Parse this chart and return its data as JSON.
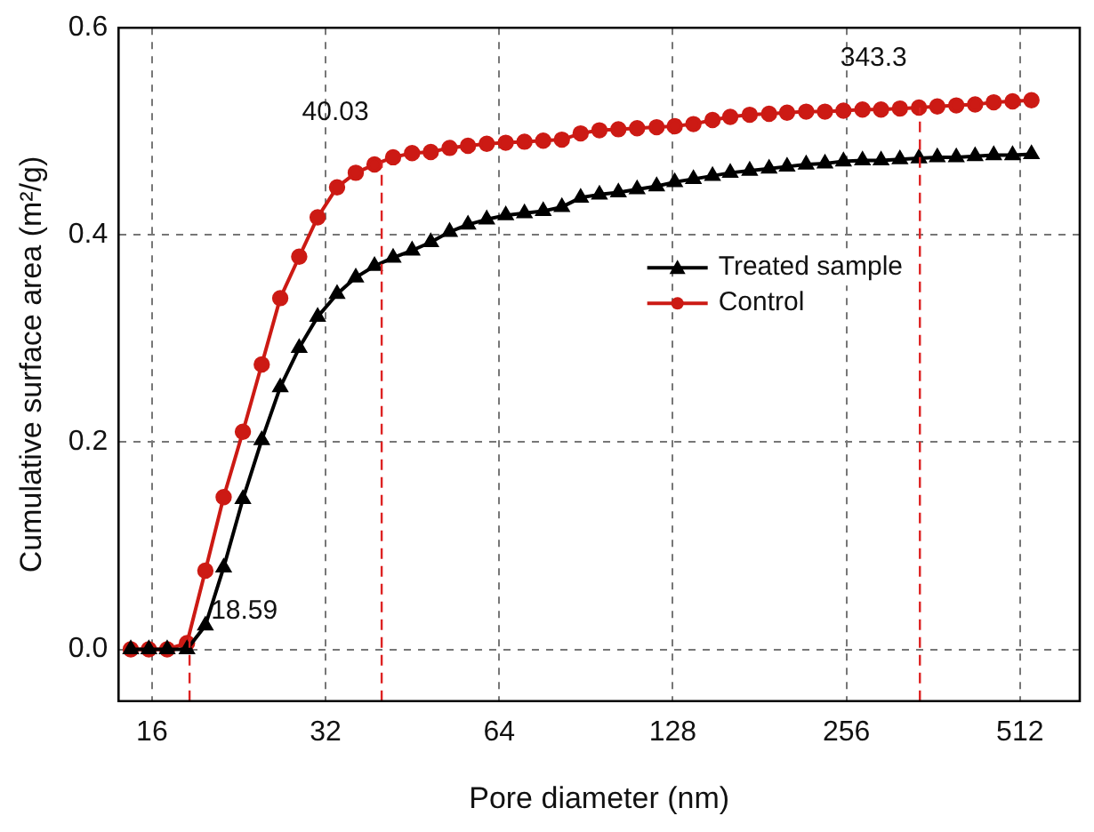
{
  "chart_data": {
    "type": "line",
    "xlabel": "Pore diameter (nm)",
    "ylabel": "Cumulative surface area (m²/g)",
    "log": "x",
    "grid": true,
    "legend": "right",
    "line_style": "solid",
    "xlim": [
      14,
      650
    ],
    "xticks": [
      16,
      32,
      64,
      128,
      256,
      512
    ],
    "ylim": [
      -0.05,
      0.6
    ],
    "yticks": [
      {
        "value": 0,
        "label": "0.0"
      },
      {
        "value": 0.2,
        "label": "0.2"
      },
      {
        "value": 0.4,
        "label": "0.4"
      },
      {
        "value": 0.6,
        "label": "0.6"
      }
    ],
    "x": [
      14.7,
      15.8,
      17.0,
      18.4,
      19.8,
      21.3,
      23.0,
      24.8,
      26.7,
      28.8,
      31.0,
      33.5,
      36.1,
      38.9,
      41.9,
      45.2,
      48.7,
      52.5,
      56.5,
      60.9,
      65.7,
      70.8,
      76.3,
      82.2,
      88.6,
      95.5,
      103,
      111,
      120,
      129,
      139,
      150,
      161,
      174,
      188,
      202,
      218,
      235,
      253,
      273,
      294,
      317,
      342,
      368,
      397,
      428,
      461,
      497,
      536
    ],
    "series": [
      {
        "name": "Treated sample",
        "color": "#000000",
        "marker": "triangle",
        "values": [
          0,
          0,
          0,
          0,
          0.023,
          0.079,
          0.145,
          0.202,
          0.253,
          0.291,
          0.321,
          0.343,
          0.359,
          0.37,
          0.378,
          0.385,
          0.393,
          0.403,
          0.41,
          0.415,
          0.419,
          0.421,
          0.423,
          0.427,
          0.436,
          0.439,
          0.441,
          0.444,
          0.447,
          0.451,
          0.454,
          0.457,
          0.46,
          0.462,
          0.464,
          0.466,
          0.468,
          0.469,
          0.471,
          0.472,
          0.472,
          0.473,
          0.474,
          0.475,
          0.475,
          0.476,
          0.477,
          0.477,
          0.478
        ]
      },
      {
        "name": "Control",
        "color": "#cc1a14",
        "marker": "circle",
        "values": [
          0,
          0,
          0,
          0.006,
          0.076,
          0.147,
          0.21,
          0.275,
          0.339,
          0.379,
          0.417,
          0.446,
          0.46,
          0.468,
          0.475,
          0.479,
          0.48,
          0.484,
          0.486,
          0.488,
          0.489,
          0.49,
          0.491,
          0.492,
          0.498,
          0.501,
          0.502,
          0.503,
          0.504,
          0.505,
          0.507,
          0.511,
          0.514,
          0.516,
          0.517,
          0.518,
          0.519,
          0.519,
          0.52,
          0.521,
          0.521,
          0.522,
          0.523,
          0.524,
          0.525,
          0.526,
          0.528,
          0.529,
          0.53
        ]
      }
    ],
    "ref_lines": [
      {
        "axis": "x",
        "value": 18.59,
        "label": "18.59",
        "color": "#dd2222",
        "line_style": "dashed"
      },
      {
        "axis": "x",
        "value": 40.03,
        "label": "40.03",
        "color": "#dd2222",
        "line_style": "dashed"
      },
      {
        "axis": "x",
        "value": 343.3,
        "label": "343.3",
        "color": "#dd2222",
        "line_style": "dashed"
      }
    ]
  }
}
